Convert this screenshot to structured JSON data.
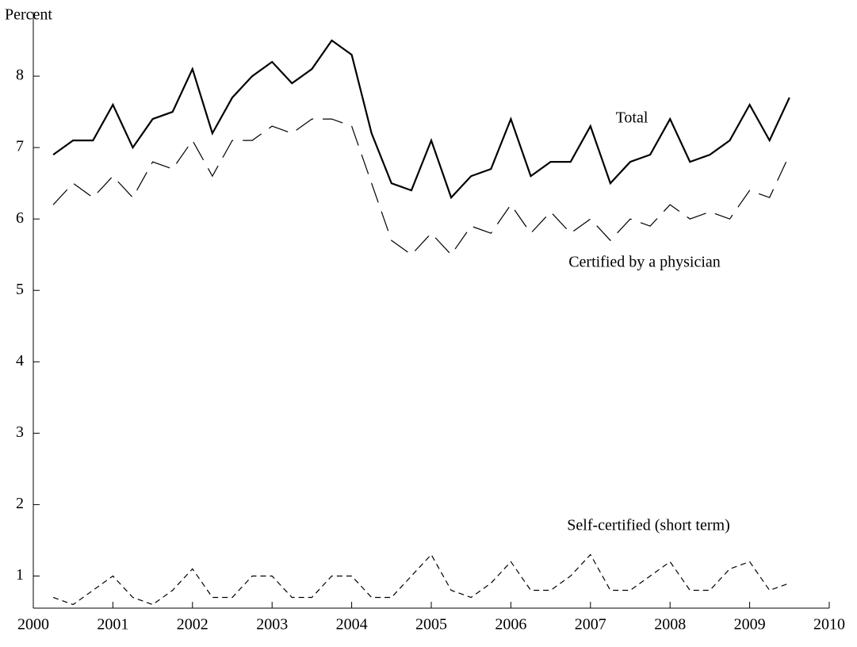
{
  "chart_data": {
    "type": "line",
    "y_label": "Percent",
    "x": [
      2000.25,
      2000.5,
      2000.75,
      2001,
      2001.25,
      2001.5,
      2001.75,
      2002,
      2002.25,
      2002.5,
      2002.75,
      2003,
      2003.25,
      2003.5,
      2003.75,
      2004,
      2004.25,
      2004.5,
      2004.75,
      2005,
      2005.25,
      2005.5,
      2005.75,
      2006,
      2006.25,
      2006.5,
      2006.75,
      2007,
      2007.25,
      2007.5,
      2007.75,
      2008,
      2008.25,
      2008.5,
      2008.75,
      2009,
      2009.25,
      2009.5
    ],
    "series": [
      {
        "name": "Total",
        "color": "#000000",
        "dash": "solid",
        "width": 2.2,
        "values": [
          6.9,
          7.1,
          7.1,
          7.6,
          7.0,
          7.4,
          7.5,
          8.1,
          7.2,
          7.7,
          8.0,
          8.2,
          7.9,
          8.1,
          8.5,
          8.3,
          7.2,
          6.5,
          6.4,
          7.1,
          6.3,
          6.6,
          6.7,
          7.4,
          6.6,
          6.8,
          6.8,
          7.3,
          6.5,
          6.8,
          6.9,
          7.4,
          6.8,
          6.9,
          7.1,
          7.6,
          7.1,
          7.7
        ]
      },
      {
        "name": "Certified by a physician",
        "color": "#000000",
        "dash": "long",
        "width": 1.2,
        "values": [
          6.2,
          6.5,
          6.3,
          6.6,
          6.3,
          6.8,
          6.7,
          7.1,
          6.6,
          7.1,
          7.1,
          7.3,
          7.2,
          7.4,
          7.4,
          7.3,
          6.5,
          5.7,
          5.5,
          5.8,
          5.5,
          5.9,
          5.8,
          6.2,
          5.8,
          6.1,
          5.8,
          6.0,
          5.7,
          6.0,
          5.9,
          6.2,
          6.0,
          6.1,
          6.0,
          6.4,
          6.3,
          6.9
        ]
      },
      {
        "name": "Self-certified (short term)",
        "color": "#000000",
        "dash": "short",
        "width": 1.2,
        "values": [
          0.7,
          0.6,
          0.8,
          1.0,
          0.7,
          0.6,
          0.8,
          1.1,
          0.7,
          0.7,
          1.0,
          1.0,
          0.7,
          0.7,
          1.0,
          1.0,
          0.7,
          0.7,
          1.0,
          1.3,
          0.8,
          0.7,
          0.9,
          1.2,
          0.8,
          0.8,
          1.0,
          1.3,
          0.8,
          0.8,
          1.0,
          1.2,
          0.8,
          0.8,
          1.1,
          1.2,
          0.8,
          0.9
        ]
      }
    ],
    "xlim": [
      2000,
      2010
    ],
    "xticks": [
      2000,
      2001,
      2002,
      2003,
      2004,
      2005,
      2006,
      2007,
      2008,
      2009,
      2010
    ],
    "ylim": [
      0.55,
      8.9
    ],
    "yticks": [
      1,
      2,
      3,
      4,
      5,
      6,
      7,
      8
    ],
    "grid": false
  }
}
